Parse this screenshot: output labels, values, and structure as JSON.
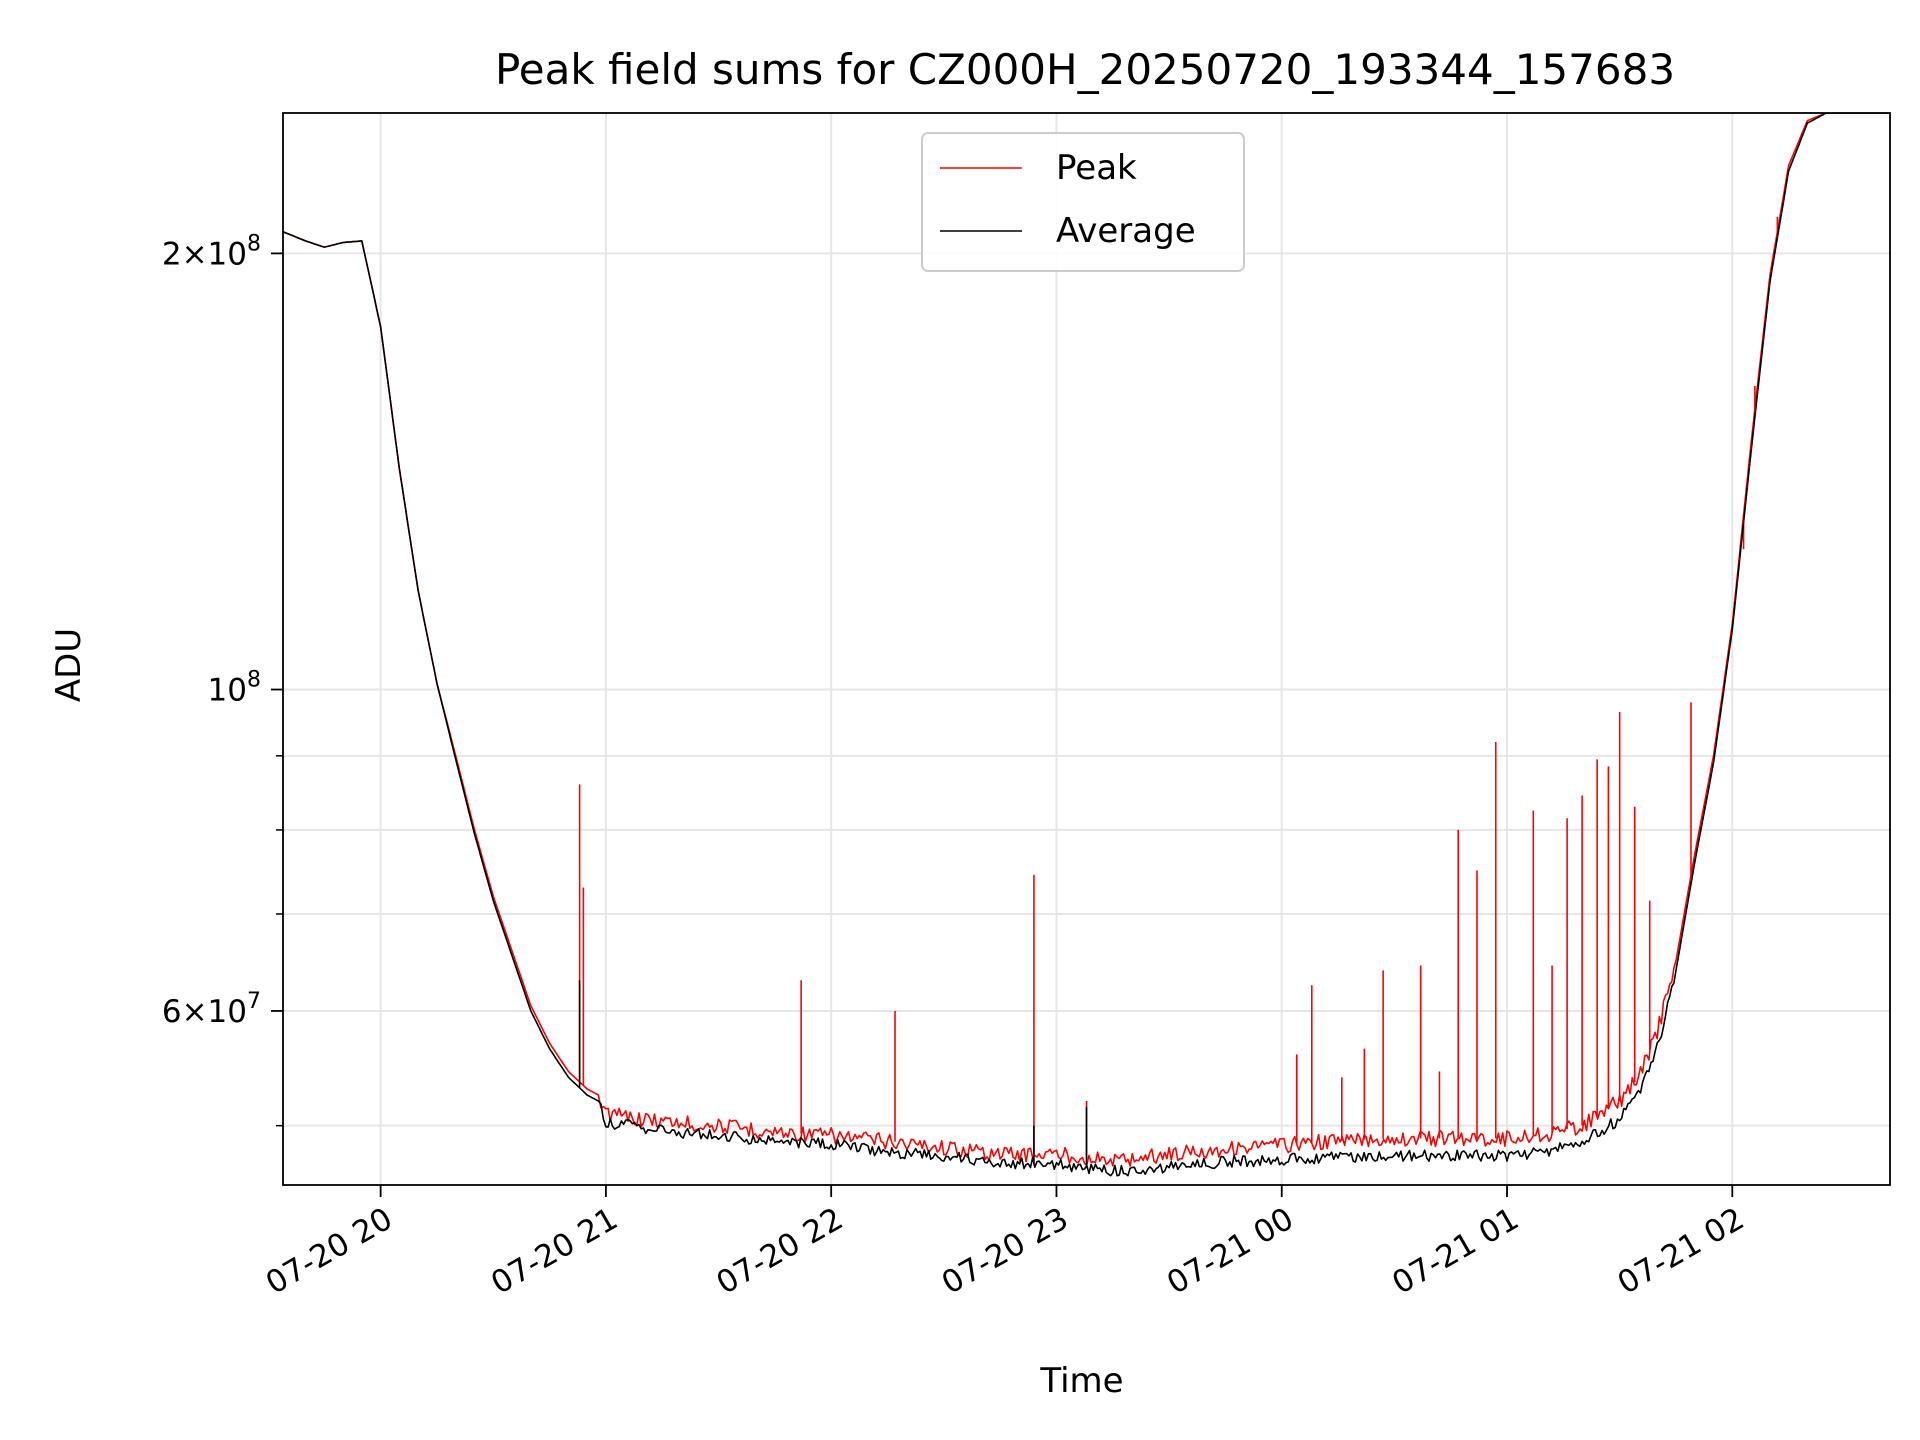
{
  "chart_data": {
    "type": "line",
    "title": "Peak field sums for CZ000H_20250720_193344_157683",
    "xlabel": "Time",
    "ylabel": "ADU",
    "yscale": "log",
    "xlim": [
      "2025-07-20 19:34",
      "2025-07-21 02:42"
    ],
    "ylim": [
      45500000,
      250000000
    ],
    "grid": true,
    "legend_position": "top-center",
    "x_ticks": [
      {
        "t": "2025-07-20 20:00",
        "label": "07-20 20"
      },
      {
        "t": "2025-07-20 21:00",
        "label": "07-20 21"
      },
      {
        "t": "2025-07-20 22:00",
        "label": "07-20 22"
      },
      {
        "t": "2025-07-20 23:00",
        "label": "07-20 23"
      },
      {
        "t": "2025-07-21 00:00",
        "label": "07-21 00"
      },
      {
        "t": "2025-07-21 01:00",
        "label": "07-21 01"
      },
      {
        "t": "2025-07-21 02:00",
        "label": "07-21 02"
      }
    ],
    "y_major_ticks": [
      {
        "v": 60000000,
        "base": "6",
        "exp": "7"
      },
      {
        "v": 100000000,
        "base": "",
        "exp": "8"
      },
      {
        "v": 200000000,
        "base": "2",
        "exp": "8"
      }
    ],
    "y_minor_ticks": [
      50000000,
      70000000,
      80000000,
      90000000
    ],
    "series": [
      {
        "name": "Peak",
        "color": "#ff0000",
        "points": [
          [
            "2025-07-20 19:34",
            207000000
          ],
          [
            "2025-07-20 19:40",
            204000000
          ],
          [
            "2025-07-20 19:45",
            202000000
          ],
          [
            "2025-07-20 19:50",
            203500000
          ],
          [
            "2025-07-20 19:55",
            204000000
          ],
          [
            "2025-07-20 20:00",
            178000000
          ],
          [
            "2025-07-20 20:05",
            142000000
          ],
          [
            "2025-07-20 20:10",
            117000000
          ],
          [
            "2025-07-20 20:15",
            101000000
          ],
          [
            "2025-07-20 20:20",
            90000000
          ],
          [
            "2025-07-20 20:25",
            80000000
          ],
          [
            "2025-07-20 20:30",
            72000000
          ],
          [
            "2025-07-20 20:35",
            66000000
          ],
          [
            "2025-07-20 20:40",
            60500000
          ],
          [
            "2025-07-20 20:45",
            57000000
          ],
          [
            "2025-07-20 20:50",
            54500000
          ],
          [
            "2025-07-20 20:55",
            53000000
          ],
          [
            "2025-07-20 20:58",
            52500000
          ],
          [
            "2025-07-20 21:00",
            51000000
          ],
          [
            "2025-07-20 21:10",
            50500000
          ],
          [
            "2025-07-20 21:20",
            50200000
          ],
          [
            "2025-07-20 21:30",
            50000000
          ],
          [
            "2025-07-20 21:45",
            49500000
          ],
          [
            "2025-07-20 22:00",
            49200000
          ],
          [
            "2025-07-20 22:15",
            48800000
          ],
          [
            "2025-07-20 22:30",
            48300000
          ],
          [
            "2025-07-20 22:45",
            47800000
          ],
          [
            "2025-07-20 23:00",
            47800000
          ],
          [
            "2025-07-20 23:15",
            47300000
          ],
          [
            "2025-07-20 23:30",
            47800000
          ],
          [
            "2025-07-20 23:45",
            48200000
          ],
          [
            "2025-07-21 00:00",
            48500000
          ],
          [
            "2025-07-21 00:15",
            48800000
          ],
          [
            "2025-07-21 00:30",
            49000000
          ],
          [
            "2025-07-21 00:45",
            49000000
          ],
          [
            "2025-07-21 01:00",
            49000000
          ],
          [
            "2025-07-21 01:10",
            49300000
          ],
          [
            "2025-07-21 01:20",
            50000000
          ],
          [
            "2025-07-21 01:30",
            52000000
          ],
          [
            "2025-07-21 01:35",
            54000000
          ],
          [
            "2025-07-21 01:40",
            58000000
          ],
          [
            "2025-07-21 01:45",
            65000000
          ],
          [
            "2025-07-21 01:50",
            77000000
          ],
          [
            "2025-07-21 01:55",
            90000000
          ],
          [
            "2025-07-21 02:00",
            111000000
          ],
          [
            "2025-07-21 02:05",
            148000000
          ],
          [
            "2025-07-21 02:10",
            193000000
          ],
          [
            "2025-07-21 02:15",
            230000000
          ],
          [
            "2025-07-21 02:20",
            247000000
          ],
          [
            "2025-07-21 02:25",
            250000000
          ],
          [
            "2025-07-21 02:42",
            250000000
          ]
        ],
        "spikes": [
          [
            "2025-07-20 20:53",
            86000000
          ],
          [
            "2025-07-20 20:54",
            73000000
          ],
          [
            "2025-07-20 21:52",
            63000000
          ],
          [
            "2025-07-20 22:17",
            60000000
          ],
          [
            "2025-07-20 22:54",
            74500000
          ],
          [
            "2025-07-20 23:08",
            52000000
          ],
          [
            "2025-07-21 00:04",
            56000000
          ],
          [
            "2025-07-21 00:08",
            62500000
          ],
          [
            "2025-07-21 00:16",
            54000000
          ],
          [
            "2025-07-21 00:22",
            56500000
          ],
          [
            "2025-07-21 00:27",
            64000000
          ],
          [
            "2025-07-21 00:37",
            64500000
          ],
          [
            "2025-07-21 00:42",
            54500000
          ],
          [
            "2025-07-21 00:47",
            80000000
          ],
          [
            "2025-07-21 00:52",
            75000000
          ],
          [
            "2025-07-21 00:57",
            92000000
          ],
          [
            "2025-07-21 01:07",
            82500000
          ],
          [
            "2025-07-21 01:12",
            64500000
          ],
          [
            "2025-07-21 01:16",
            81500000
          ],
          [
            "2025-07-21 01:20",
            84500000
          ],
          [
            "2025-07-21 01:24",
            89500000
          ],
          [
            "2025-07-21 01:27",
            88500000
          ],
          [
            "2025-07-21 01:30",
            96500000
          ],
          [
            "2025-07-21 01:34",
            83000000
          ],
          [
            "2025-07-21 01:38",
            71500000
          ],
          [
            "2025-07-21 01:49",
            98000000
          ],
          [
            "2025-07-21 02:03",
            125000000
          ],
          [
            "2025-07-21 02:06",
            162000000
          ],
          [
            "2025-07-21 02:12",
            212000000
          ]
        ]
      },
      {
        "name": "Average",
        "color": "#000000",
        "points": [
          [
            "2025-07-20 19:34",
            207000000
          ],
          [
            "2025-07-20 19:40",
            204000000
          ],
          [
            "2025-07-20 19:45",
            202000000
          ],
          [
            "2025-07-20 19:50",
            203500000
          ],
          [
            "2025-07-20 19:55",
            204000000
          ],
          [
            "2025-07-20 20:00",
            178000000
          ],
          [
            "2025-07-20 20:05",
            142000000
          ],
          [
            "2025-07-20 20:10",
            117000000
          ],
          [
            "2025-07-20 20:15",
            101000000
          ],
          [
            "2025-07-20 20:20",
            89500000
          ],
          [
            "2025-07-20 20:25",
            79500000
          ],
          [
            "2025-07-20 20:30",
            71500000
          ],
          [
            "2025-07-20 20:35",
            65500000
          ],
          [
            "2025-07-20 20:40",
            60000000
          ],
          [
            "2025-07-20 20:45",
            56500000
          ],
          [
            "2025-07-20 20:50",
            54000000
          ],
          [
            "2025-07-20 20:55",
            52500000
          ],
          [
            "2025-07-20 20:58",
            52000000
          ],
          [
            "2025-07-20 21:00",
            50300000
          ],
          [
            "2025-07-20 21:10",
            49800000
          ],
          [
            "2025-07-20 21:20",
            49500000
          ],
          [
            "2025-07-20 21:30",
            49200000
          ],
          [
            "2025-07-20 21:45",
            48800000
          ],
          [
            "2025-07-20 22:00",
            48500000
          ],
          [
            "2025-07-20 22:15",
            48000000
          ],
          [
            "2025-07-20 22:30",
            47600000
          ],
          [
            "2025-07-20 22:45",
            47200000
          ],
          [
            "2025-07-20 23:00",
            47000000
          ],
          [
            "2025-07-20 23:15",
            46500000
          ],
          [
            "2025-07-20 23:30",
            46800000
          ],
          [
            "2025-07-20 23:45",
            47200000
          ],
          [
            "2025-07-21 00:00",
            47400000
          ],
          [
            "2025-07-21 00:15",
            47600000
          ],
          [
            "2025-07-21 00:30",
            47700000
          ],
          [
            "2025-07-21 00:45",
            47700000
          ],
          [
            "2025-07-21 01:00",
            47700000
          ],
          [
            "2025-07-21 01:10",
            48000000
          ],
          [
            "2025-07-21 01:20",
            48800000
          ],
          [
            "2025-07-21 01:30",
            50500000
          ],
          [
            "2025-07-21 01:35",
            52500000
          ],
          [
            "2025-07-21 01:40",
            56500000
          ],
          [
            "2025-07-21 01:45",
            64000000
          ],
          [
            "2025-07-21 01:50",
            76000000
          ],
          [
            "2025-07-21 01:55",
            89000000
          ],
          [
            "2025-07-21 02:00",
            110000000
          ],
          [
            "2025-07-21 02:05",
            146000000
          ],
          [
            "2025-07-21 02:10",
            191000000
          ],
          [
            "2025-07-21 02:15",
            228000000
          ],
          [
            "2025-07-21 02:20",
            246000000
          ],
          [
            "2025-07-21 02:25",
            250000000
          ],
          [
            "2025-07-21 02:42",
            250000000
          ]
        ],
        "spikes": [
          [
            "2025-07-20 20:53",
            63000000
          ],
          [
            "2025-07-20 22:54",
            50000000
          ],
          [
            "2025-07-20 23:08",
            51500000
          ]
        ]
      }
    ]
  }
}
